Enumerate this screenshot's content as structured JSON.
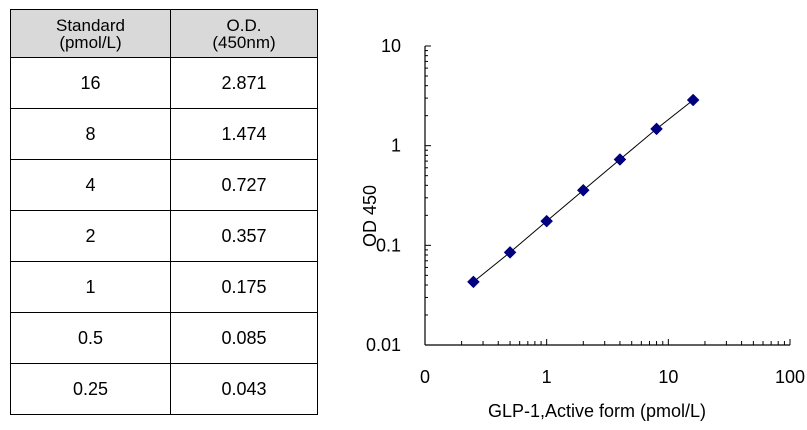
{
  "table": {
    "headers": [
      [
        "Standard",
        "(pmol/L)"
      ],
      [
        "O.D.",
        "(450nm)"
      ]
    ],
    "rows": [
      [
        "16",
        "2.871"
      ],
      [
        "8",
        "1.474"
      ],
      [
        "4",
        "0.727"
      ],
      [
        "2",
        "0.357"
      ],
      [
        "1",
        "0.175"
      ],
      [
        "0.5",
        "0.085"
      ],
      [
        "0.25",
        "0.043"
      ]
    ]
  },
  "chart_data": {
    "type": "scatter",
    "x_scale": "log",
    "y_scale": "log",
    "xlabel": "GLP-1,Active form  (pmol/L)",
    "ylabel": "OD 450",
    "xlim": [
      0.1,
      100
    ],
    "ylim": [
      0.01,
      10
    ],
    "x_tick_labels": [
      "0",
      "1",
      "10",
      "100"
    ],
    "y_tick_labels": [
      "10",
      "1",
      "0.1",
      "0.01"
    ],
    "grid": false,
    "trendline": true,
    "marker": "diamond",
    "marker_color": "#000080",
    "line_color": "#000000",
    "series": [
      {
        "x": [
          16,
          8,
          4,
          2,
          1,
          0.5,
          0.25
        ],
        "y": [
          2.871,
          1.474,
          0.727,
          0.357,
          0.175,
          0.085,
          0.043
        ]
      }
    ]
  }
}
